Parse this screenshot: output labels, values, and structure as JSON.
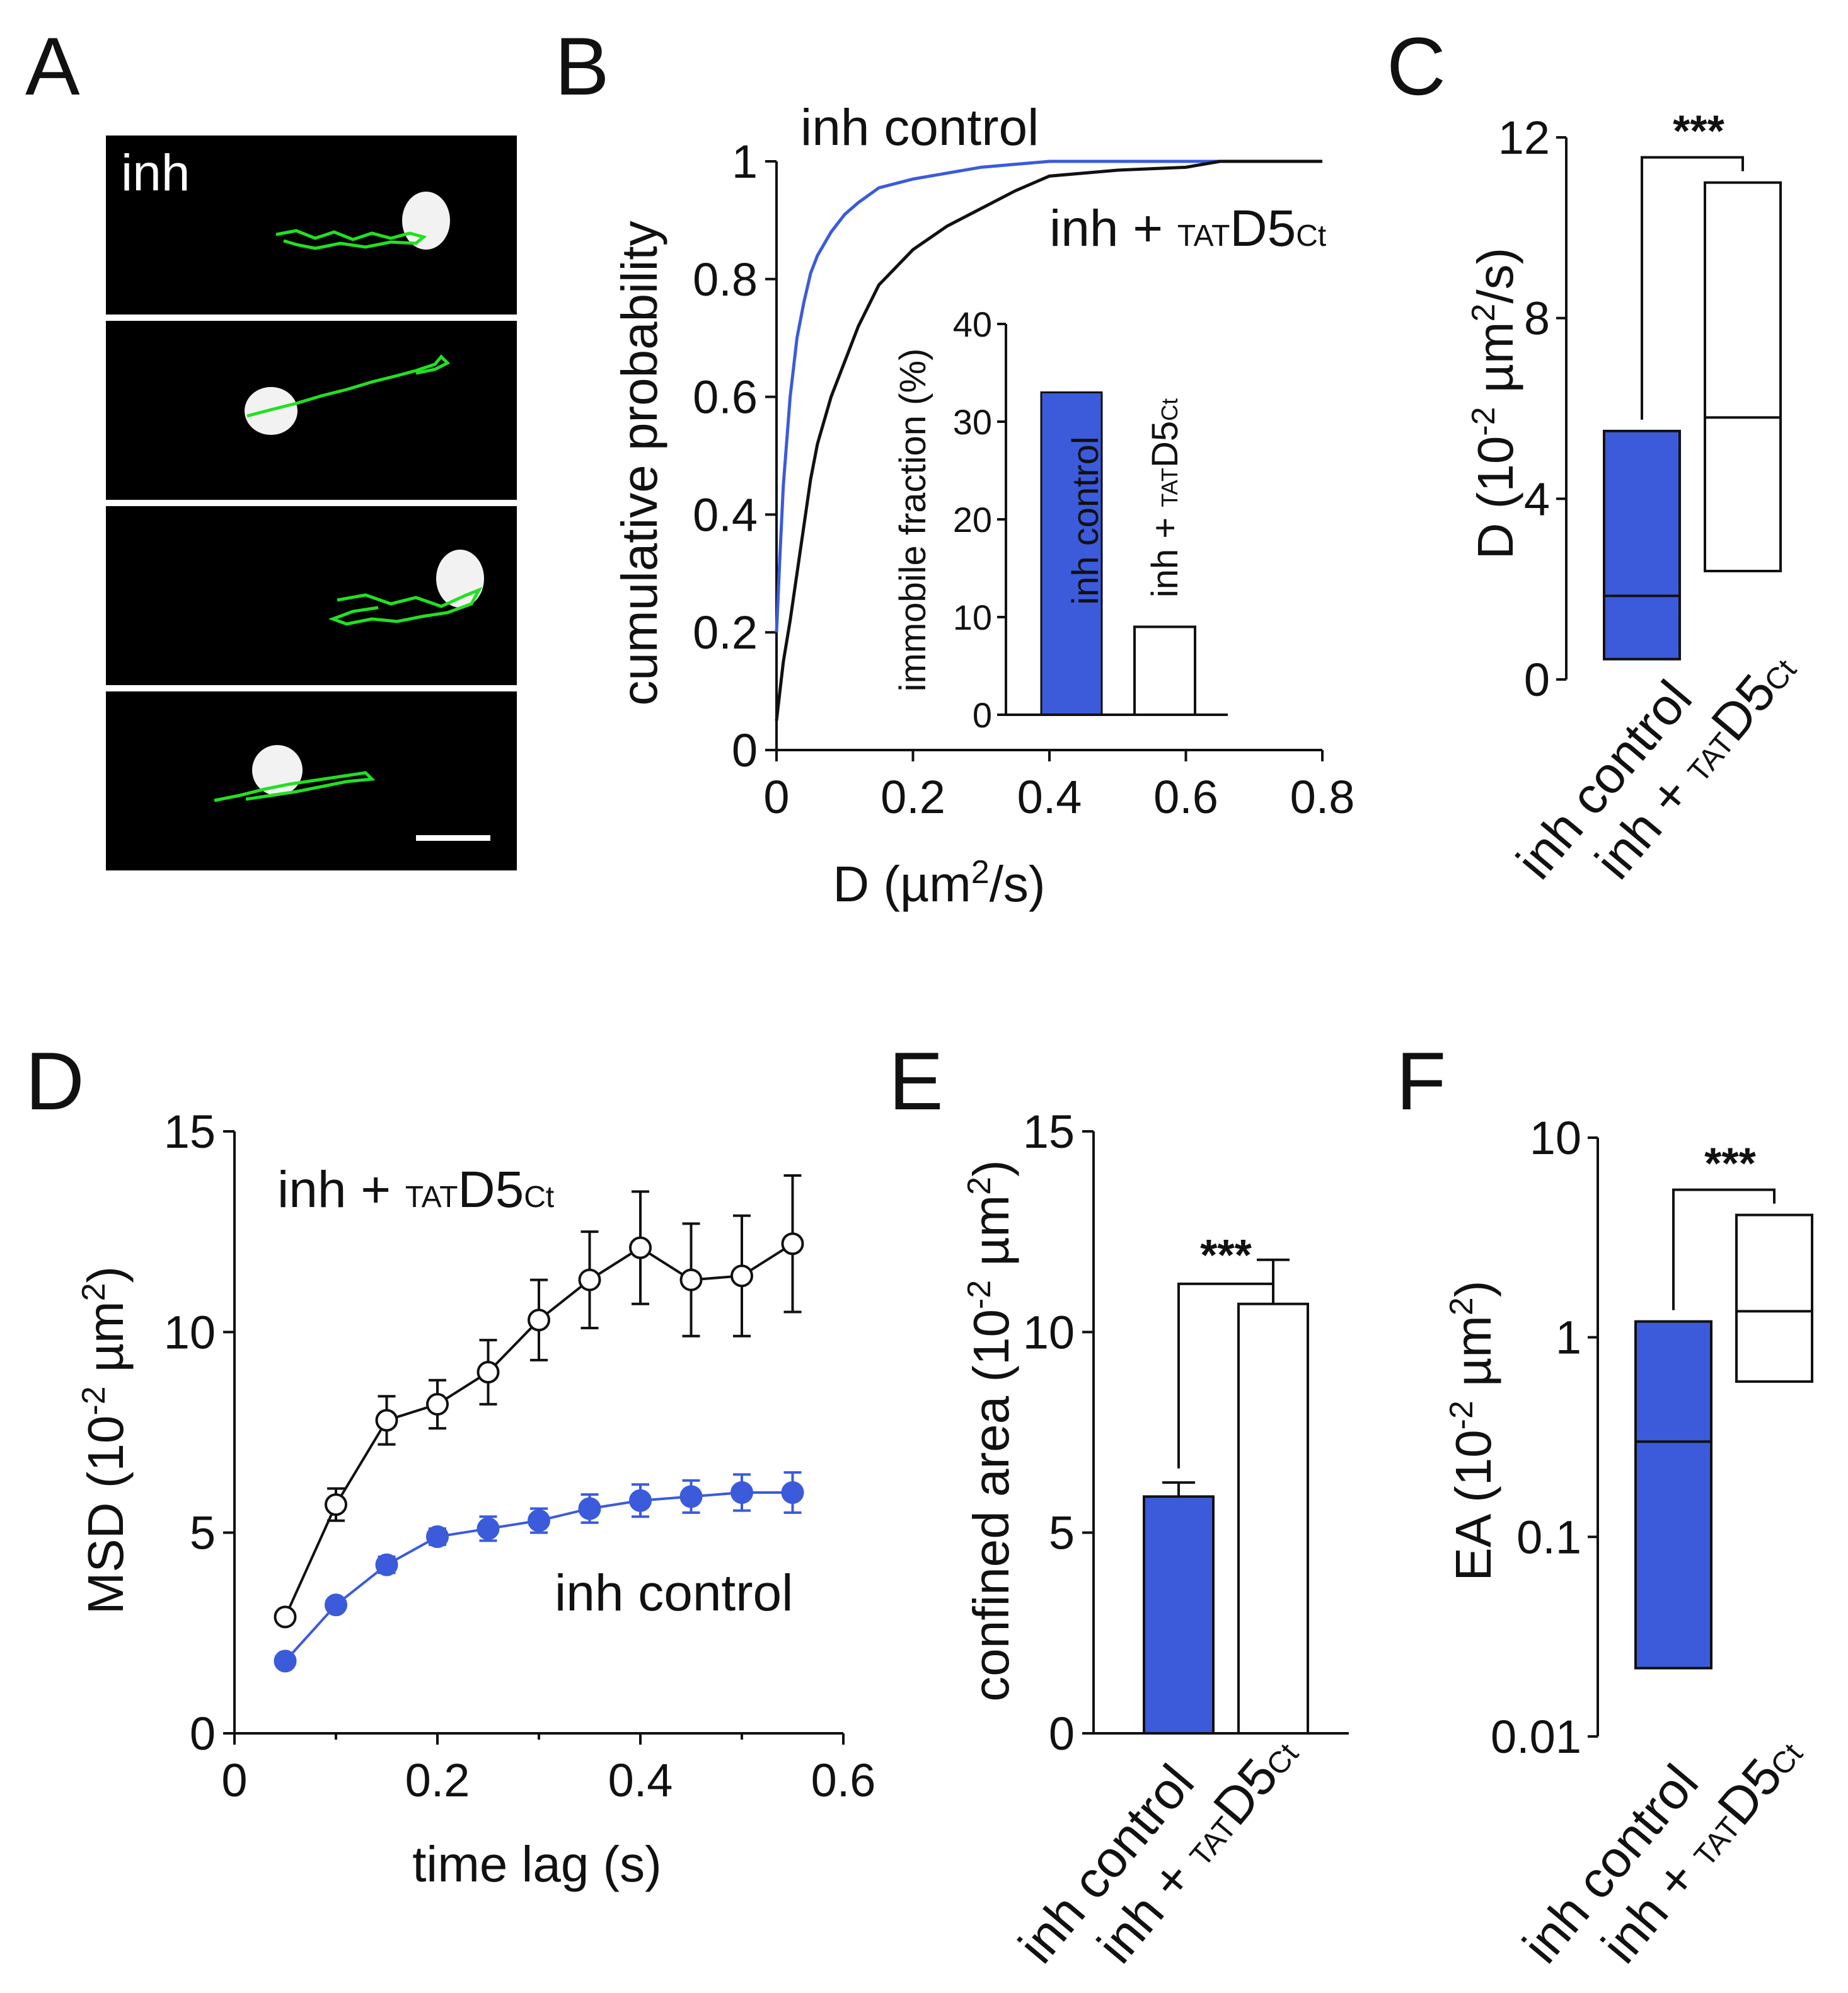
{
  "colors": {
    "blue": "#3b5bdb",
    "black": "#111111",
    "green": "#00e000",
    "white": "#ffffff"
  },
  "panels": {
    "A": {
      "letter": "A",
      "label": "inh"
    },
    "B": {
      "letter": "B"
    },
    "C": {
      "letter": "C"
    },
    "D": {
      "letter": "D"
    },
    "E": {
      "letter": "E"
    },
    "F": {
      "letter": "F"
    }
  },
  "labels": {
    "inh_control": "inh control",
    "inh_plus_prefix": "inh + ",
    "tat": "TAT",
    "d5": "D5",
    "ct": "Ct",
    "stars": "***"
  },
  "chart_data": [
    {
      "panel": "B",
      "type": "line",
      "title": "",
      "xlabel": "D (µm2/s)",
      "xlabel_parts": {
        "main": "D (µm",
        "sup": "2",
        "tail": "/s)"
      },
      "ylabel": "cumulative probability",
      "xlim": [
        0,
        0.8
      ],
      "ylim": [
        0,
        1
      ],
      "xticks": [
        "0",
        "0.2",
        "0.4",
        "0.6",
        "0.8"
      ],
      "yticks": [
        "0",
        "0.2",
        "0.4",
        "0.6",
        "0.8",
        "1"
      ],
      "series": [
        {
          "name": "inh control",
          "color": "#3b5bdb",
          "x": [
            0,
            0.005,
            0.01,
            0.02,
            0.03,
            0.04,
            0.05,
            0.06,
            0.08,
            0.1,
            0.12,
            0.15,
            0.2,
            0.25,
            0.3,
            0.35,
            0.4,
            0.5,
            0.6,
            0.7,
            0.8
          ],
          "y": [
            0.2,
            0.33,
            0.45,
            0.6,
            0.7,
            0.76,
            0.81,
            0.84,
            0.88,
            0.91,
            0.93,
            0.955,
            0.97,
            0.98,
            0.99,
            0.995,
            1,
            1,
            1,
            1,
            1
          ]
        },
        {
          "name": "inh + TATD5Ct",
          "color": "#111111",
          "x": [
            0,
            0.005,
            0.01,
            0.02,
            0.03,
            0.04,
            0.05,
            0.06,
            0.08,
            0.1,
            0.12,
            0.15,
            0.2,
            0.25,
            0.3,
            0.35,
            0.4,
            0.5,
            0.6,
            0.65,
            0.7,
            0.8
          ],
          "y": [
            0.05,
            0.1,
            0.15,
            0.22,
            0.3,
            0.38,
            0.46,
            0.52,
            0.6,
            0.66,
            0.72,
            0.79,
            0.85,
            0.89,
            0.92,
            0.95,
            0.975,
            0.985,
            0.99,
            1,
            1,
            1
          ]
        }
      ]
    },
    {
      "panel": "B-inset",
      "type": "bar",
      "ylabel": "immobile fraction (%)",
      "ylim": [
        0,
        40
      ],
      "yticks": [
        "0",
        "10",
        "20",
        "30",
        "40"
      ],
      "categories": [
        "inh control",
        "inh + TATD5Ct"
      ],
      "values": [
        33,
        9
      ]
    },
    {
      "panel": "C",
      "type": "box",
      "ylabel": "D (10-2 µm2/s)",
      "ylabel_parts": {
        "a": "D (10",
        "sup1": "-2",
        "b": " µm",
        "sup2": "2",
        "c": "/s)"
      },
      "ylim": [
        0,
        12
      ],
      "yticks": [
        "0",
        "4",
        "8",
        "12"
      ],
      "categories": [
        "inh control",
        "inh + TATD5Ct"
      ],
      "boxes": [
        {
          "name": "inh control",
          "q1": 0.45,
          "median": 1.85,
          "q3": 5.5
        },
        {
          "name": "inh + TATD5Ct",
          "q1": 2.4,
          "median": 5.8,
          "q3": 11
        }
      ],
      "significance": "***"
    },
    {
      "panel": "D",
      "type": "line",
      "xlabel": "time lag (s)",
      "ylabel": "MSD (10-2 µm2)",
      "ylabel_parts": {
        "a": "MSD (10",
        "sup1": "-2",
        "b": " µm",
        "sup2": "2",
        "c": ")"
      },
      "xlim": [
        0,
        0.6
      ],
      "ylim": [
        0,
        15
      ],
      "xticks": [
        "0",
        "0.2",
        "0.4",
        "0.6"
      ],
      "yticks": [
        "0",
        "5",
        "10",
        "15"
      ],
      "series": [
        {
          "name": "inh + TATD5Ct",
          "color": "#111111",
          "marker": "open-circle",
          "x": [
            0.05,
            0.1,
            0.15,
            0.2,
            0.25,
            0.3,
            0.35,
            0.4,
            0.45,
            0.5,
            0.55
          ],
          "y": [
            2.9,
            5.7,
            7.8,
            8.2,
            9.0,
            10.3,
            11.3,
            12.1,
            11.3,
            11.4,
            12.2
          ],
          "err": [
            0,
            0.4,
            0.6,
            0.6,
            0.8,
            1.0,
            1.2,
            1.4,
            1.4,
            1.5,
            1.7
          ]
        },
        {
          "name": "inh control",
          "color": "#3b5bdb",
          "marker": "filled-circle",
          "x": [
            0.05,
            0.1,
            0.15,
            0.2,
            0.25,
            0.3,
            0.35,
            0.4,
            0.45,
            0.5,
            0.55
          ],
          "y": [
            1.8,
            3.2,
            4.2,
            4.9,
            5.1,
            5.3,
            5.6,
            5.8,
            5.9,
            6.0,
            6.0
          ],
          "err": [
            0,
            0.15,
            0.2,
            0.2,
            0.3,
            0.3,
            0.35,
            0.4,
            0.4,
            0.45,
            0.5
          ]
        }
      ]
    },
    {
      "panel": "E",
      "type": "bar",
      "ylabel": "confined area (10-2 µm2)",
      "ylabel_parts": {
        "a": "confined area (10",
        "sup1": "-2",
        "b": " µm",
        "sup2": "2",
        "c": ")"
      },
      "ylim": [
        0,
        15
      ],
      "yticks": [
        "0",
        "5",
        "10",
        "15"
      ],
      "categories": [
        "inh control",
        "inh + TATD5Ct"
      ],
      "values": [
        5.9,
        10.7
      ],
      "err": [
        0.35,
        1.1
      ],
      "significance": "***"
    },
    {
      "panel": "F",
      "type": "box",
      "scale": "log",
      "ylabel": "EA (10-2 µm2)",
      "ylabel_parts": {
        "a": "EA (10",
        "sup1": "-2",
        "b": " µm",
        "sup2": "2",
        "c": ")"
      },
      "ylim": [
        0.01,
        10
      ],
      "yticks": [
        "0.01",
        "0.1",
        "1",
        "10"
      ],
      "categories": [
        "inh control",
        "inh + TATD5Ct"
      ],
      "boxes": [
        {
          "name": "inh control",
          "q1": 0.022,
          "median": 0.3,
          "q3": 1.2
        },
        {
          "name": "inh + TATD5Ct",
          "q1": 0.6,
          "median": 1.35,
          "q3": 4.1
        }
      ],
      "significance": "***"
    }
  ]
}
